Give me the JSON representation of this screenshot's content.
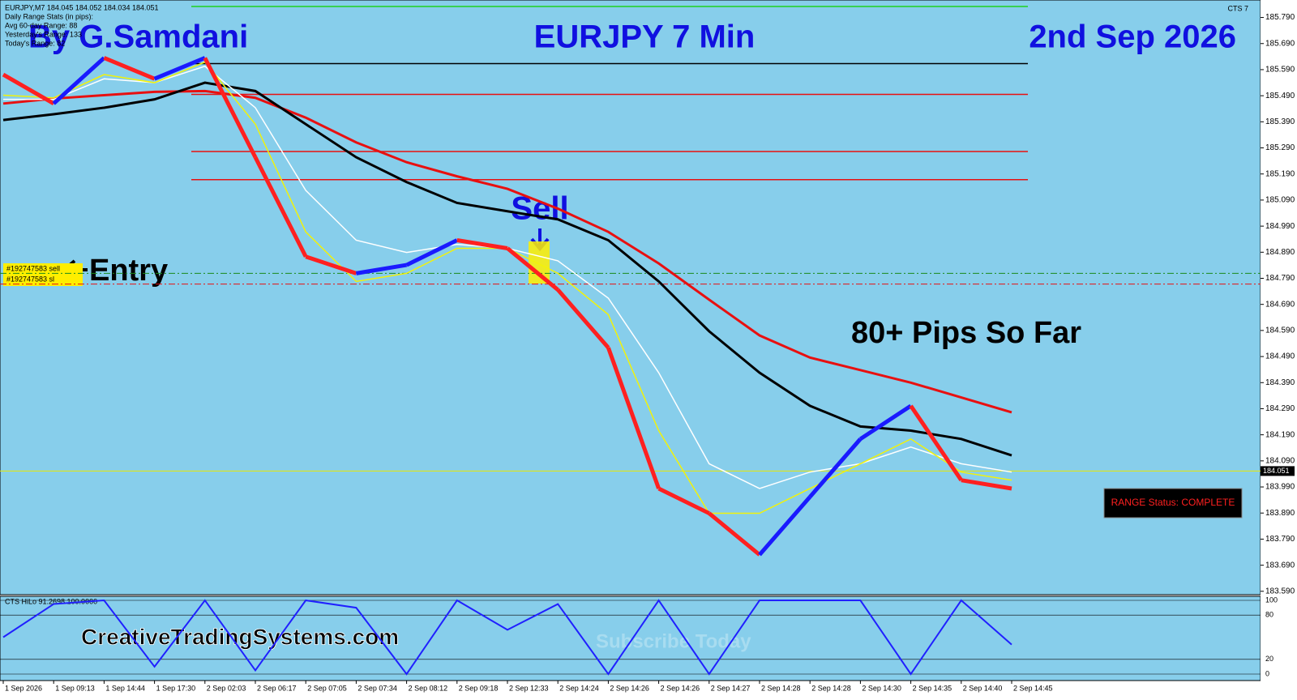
{
  "chart_data": [
    {
      "type": "line",
      "title": "EURJPY 7 Min",
      "annotations": {
        "author": "By G.Samdani",
        "date": "2nd Sep 2026",
        "signal": "Sell",
        "entry": "Entry",
        "result": "80+ Pips So Far",
        "website": "CreativeTradingSystems.com",
        "watermark": "Subscribe Today",
        "status": "RANGE Status: COMPLETE",
        "indicator": "CTS 7"
      },
      "info_lines": [
        "EURJPY,M7  184.045 184.052 184.034 184.051",
        "Daily Range Stats (in pips):",
        "Avg 60-day Range: 88",
        "Yesterday's Range: 133",
        "Today's Range: 82"
      ],
      "order_labels": [
        "#192747583 sell",
        "#192747583 sl"
      ],
      "categories": [
        "1 Sep 2026",
        "1 Sep 09:13",
        "1 Sep 14:44",
        "1 Sep 17:30",
        "2 Sep 02:03",
        "2 Sep 06:17",
        "2 Sep 07:05",
        "2 Sep 07:34",
        "2 Sep 08:12",
        "2 Sep 09:18",
        "2 Sep 12:33",
        "2 Sep 14:24",
        "2 Sep 14:26",
        "2 Sep 14:26",
        "2 Sep 14:27",
        "2 Sep 14:28",
        "2 Sep 14:28",
        "2 Sep 14:30",
        "2 Sep 14:35",
        "2 Sep 14:40",
        "2 Sep 14:45"
      ],
      "price": {
        "values": [
          185.571,
          185.46,
          185.635,
          185.555,
          185.635,
          185.254,
          184.873,
          184.809,
          184.841,
          184.936,
          184.905,
          184.746,
          184.524,
          183.984,
          183.889,
          183.73,
          183.952,
          184.174,
          184.301,
          184.016,
          183.984
        ],
        "up_color": "#1a1aff",
        "down_color": "#ff2020"
      },
      "series": [
        {
          "color": "#e81010",
          "width": 3,
          "values": [
            185.46,
            185.479,
            185.492,
            185.505,
            185.508,
            185.482,
            185.406,
            185.311,
            185.235,
            185.181,
            185.133,
            185.057,
            184.968,
            184.847,
            184.708,
            184.571,
            184.486,
            184.438,
            184.39,
            184.333,
            184.276
          ]
        },
        {
          "color": "#000000",
          "width": 3,
          "values": [
            185.397,
            185.419,
            185.444,
            185.476,
            185.54,
            185.508,
            185.381,
            185.254,
            185.159,
            185.079,
            185.047,
            185.016,
            184.936,
            184.778,
            184.587,
            184.428,
            184.301,
            184.222,
            184.206,
            184.174,
            184.111
          ]
        },
        {
          "color": "#ffffff",
          "width": 1.5,
          "values": [
            185.476,
            185.476,
            185.555,
            185.54,
            185.603,
            185.444,
            185.127,
            184.936,
            184.889,
            184.92,
            184.905,
            184.857,
            184.714,
            184.428,
            184.079,
            183.984,
            184.047,
            184.079,
            184.143,
            184.079,
            184.047
          ]
        },
        {
          "color": "#f2f20a",
          "width": 1.5,
          "values": [
            185.492,
            185.482,
            185.571,
            185.54,
            185.619,
            185.381,
            184.968,
            184.778,
            184.809,
            184.905,
            184.905,
            184.809,
            184.651,
            184.206,
            183.889,
            183.889,
            183.984,
            184.079,
            184.174,
            184.047,
            184.016
          ]
        }
      ],
      "levels": [
        {
          "value": 185.832,
          "color": "#1ed01e"
        },
        {
          "value": 185.613,
          "color": "#000000"
        },
        {
          "value": 185.495,
          "color": "#e81010"
        },
        {
          "value": 185.276,
          "color": "#e81010"
        },
        {
          "value": 185.168,
          "color": "#e81010"
        },
        {
          "value": 184.809,
          "color": "#1a8a1a"
        },
        {
          "value": 184.768,
          "color": "#e81010"
        }
      ],
      "current_price": 184.051,
      "ylim": [
        183.577,
        185.857
      ],
      "yticks": [
        {
          "value": 185.79,
          "label": "185.790"
        },
        {
          "value": 185.69,
          "label": "185.690"
        },
        {
          "value": 185.59,
          "label": "185.590"
        },
        {
          "value": 185.49,
          "label": "185.490"
        },
        {
          "value": 185.39,
          "label": "185.390"
        },
        {
          "value": 185.29,
          "label": "185.290"
        },
        {
          "value": 185.19,
          "label": "185.190"
        },
        {
          "value": 185.09,
          "label": "185.090"
        },
        {
          "value": 184.99,
          "label": "184.990"
        },
        {
          "value": 184.89,
          "label": "184.890"
        },
        {
          "value": 184.79,
          "label": "184.790"
        },
        {
          "value": 184.69,
          "label": "184.690"
        },
        {
          "value": 184.59,
          "label": "184.590"
        },
        {
          "value": 184.49,
          "label": "184.490"
        },
        {
          "value": 184.39,
          "label": "184.390"
        },
        {
          "value": 184.29,
          "label": "184.290"
        },
        {
          "value": 184.19,
          "label": "184.190"
        },
        {
          "value": 184.09,
          "label": "184.090"
        },
        {
          "value": 183.99,
          "label": "183.990"
        },
        {
          "value": 183.89,
          "label": "183.890"
        },
        {
          "value": 183.79,
          "label": "183.790"
        },
        {
          "value": 183.69,
          "label": "183.690"
        },
        {
          "value": 183.59,
          "label": "183.590"
        }
      ]
    },
    {
      "type": "line",
      "title": "CTS HiLo 91.2698 100.0000",
      "series": [
        {
          "color": "#2020ff",
          "values": [
            50,
            95,
            100,
            10,
            100,
            5,
            100,
            90,
            0,
            100,
            60,
            95,
            0,
            100,
            0,
            100,
            100,
            100,
            0,
            100,
            40
          ]
        }
      ],
      "ylim": [
        0,
        100
      ],
      "yticks": [
        100,
        80,
        20,
        0
      ]
    }
  ]
}
